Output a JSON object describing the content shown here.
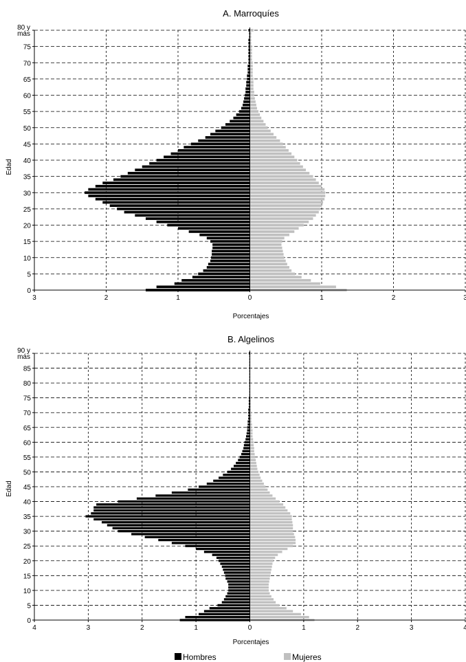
{
  "charts": [
    {
      "type": "bar",
      "title": "A. Marroquíes",
      "xlabel": "Porcentajes",
      "ylabel": "Edad",
      "x_ticks": [
        "3",
        "2",
        "1",
        "0",
        "1",
        "2",
        "3"
      ],
      "y_ticks": [
        "0",
        "5",
        "10",
        "15",
        "20",
        "25",
        "30",
        "35",
        "40",
        "45",
        "50",
        "55",
        "60",
        "65",
        "70",
        "75"
      ],
      "top_label": [
        "80 y",
        "más"
      ],
      "xlim": [
        -3,
        3
      ],
      "ages": [
        0,
        1,
        2,
        3,
        4,
        5,
        6,
        7,
        8,
        9,
        10,
        11,
        12,
        13,
        14,
        15,
        16,
        17,
        18,
        19,
        20,
        21,
        22,
        23,
        24,
        25,
        26,
        27,
        28,
        29,
        30,
        31,
        32,
        33,
        34,
        35,
        36,
        37,
        38,
        39,
        40,
        41,
        42,
        43,
        44,
        45,
        46,
        47,
        48,
        49,
        50,
        51,
        52,
        53,
        54,
        55,
        56,
        57,
        58,
        59,
        60,
        61,
        62,
        63,
        64,
        65,
        66,
        67,
        68,
        69,
        70,
        71,
        72,
        73,
        74,
        75,
        76,
        77,
        78,
        79,
        80
      ],
      "hombres": [
        1.45,
        1.3,
        1.05,
        0.95,
        0.8,
        0.72,
        0.65,
        0.6,
        0.58,
        0.55,
        0.54,
        0.53,
        0.53,
        0.52,
        0.52,
        0.55,
        0.6,
        0.7,
        0.85,
        1.0,
        1.15,
        1.3,
        1.45,
        1.6,
        1.75,
        1.85,
        1.95,
        2.05,
        2.15,
        2.25,
        2.3,
        2.25,
        2.15,
        2.05,
        1.9,
        1.8,
        1.7,
        1.6,
        1.5,
        1.4,
        1.3,
        1.2,
        1.1,
        1.0,
        0.92,
        0.82,
        0.72,
        0.62,
        0.55,
        0.48,
        0.4,
        0.34,
        0.28,
        0.23,
        0.19,
        0.15,
        0.12,
        0.1,
        0.09,
        0.08,
        0.07,
        0.06,
        0.06,
        0.05,
        0.05,
        0.04,
        0.04,
        0.03,
        0.03,
        0.03,
        0.02,
        0.02,
        0.02,
        0.02,
        0.02,
        0.02,
        0.02,
        0.02,
        0.01,
        0.01,
        0.02
      ],
      "mujeres": [
        1.35,
        1.2,
        0.98,
        0.85,
        0.72,
        0.63,
        0.58,
        0.55,
        0.52,
        0.5,
        0.48,
        0.47,
        0.46,
        0.45,
        0.44,
        0.45,
        0.48,
        0.55,
        0.62,
        0.68,
        0.75,
        0.82,
        0.88,
        0.92,
        0.96,
        0.98,
        1.0,
        1.02,
        1.04,
        1.05,
        1.05,
        1.04,
        1.0,
        0.96,
        0.92,
        0.88,
        0.83,
        0.78,
        0.74,
        0.7,
        0.66,
        0.62,
        0.58,
        0.54,
        0.5,
        0.46,
        0.42,
        0.37,
        0.33,
        0.29,
        0.25,
        0.22,
        0.19,
        0.16,
        0.14,
        0.12,
        0.1,
        0.09,
        0.08,
        0.07,
        0.06,
        0.06,
        0.05,
        0.05,
        0.05,
        0.05,
        0.04,
        0.04,
        0.04,
        0.04,
        0.04,
        0.03,
        0.03,
        0.03,
        0.03,
        0.03,
        0.02,
        0.02,
        0.02,
        0.02,
        0.05
      ]
    },
    {
      "type": "bar",
      "title": "B. Algelinos",
      "xlabel": "Porcentajes",
      "ylabel": "Edad",
      "x_ticks": [
        "4",
        "3",
        "2",
        "1",
        "0",
        "1",
        "2",
        "3",
        "4"
      ],
      "y_ticks": [
        "0",
        "5",
        "10",
        "15",
        "20",
        "25",
        "30",
        "35",
        "40",
        "45",
        "50",
        "55",
        "60",
        "65",
        "70",
        "75",
        "80",
        "85"
      ],
      "top_label": [
        "90 y",
        "más"
      ],
      "xlim": [
        -4,
        4
      ],
      "ages": [
        0,
        1,
        2,
        3,
        4,
        5,
        6,
        7,
        8,
        9,
        10,
        11,
        12,
        13,
        14,
        15,
        16,
        17,
        18,
        19,
        20,
        21,
        22,
        23,
        24,
        25,
        26,
        27,
        28,
        29,
        30,
        31,
        32,
        33,
        34,
        35,
        36,
        37,
        38,
        39,
        40,
        41,
        42,
        43,
        44,
        45,
        46,
        47,
        48,
        49,
        50,
        51,
        52,
        53,
        54,
        55,
        56,
        57,
        58,
        59,
        60,
        61,
        62,
        63,
        64,
        65,
        66,
        67,
        68,
        69,
        70,
        71,
        72,
        73,
        74,
        75,
        76,
        77,
        78,
        79,
        80,
        81,
        82,
        83,
        84,
        85,
        86,
        87,
        88,
        89,
        90
      ],
      "hombres": [
        1.3,
        1.2,
        0.95,
        0.85,
        0.75,
        0.6,
        0.52,
        0.48,
        0.45,
        0.42,
        0.4,
        0.4,
        0.4,
        0.42,
        0.45,
        0.46,
        0.48,
        0.5,
        0.52,
        0.55,
        0.58,
        0.62,
        0.7,
        0.85,
        1.0,
        1.2,
        1.45,
        1.7,
        1.95,
        2.2,
        2.45,
        2.55,
        2.65,
        2.75,
        2.9,
        3.05,
        2.95,
        2.9,
        2.9,
        2.85,
        2.45,
        2.1,
        1.75,
        1.45,
        1.15,
        0.95,
        0.8,
        0.68,
        0.58,
        0.5,
        0.42,
        0.35,
        0.3,
        0.26,
        0.22,
        0.19,
        0.16,
        0.14,
        0.12,
        0.11,
        0.1,
        0.08,
        0.07,
        0.06,
        0.05,
        0.05,
        0.04,
        0.04,
        0.03,
        0.03,
        0.03,
        0.03,
        0.02,
        0.02,
        0.02,
        0.02,
        0.01,
        0.01,
        0.01,
        0.01,
        0.01,
        0.01,
        0.01,
        0.01,
        0.01,
        0.01,
        0.01,
        0.01,
        0.01,
        0.01,
        0.02
      ],
      "mujeres": [
        1.2,
        1.1,
        0.95,
        0.8,
        0.68,
        0.55,
        0.48,
        0.44,
        0.4,
        0.37,
        0.35,
        0.35,
        0.35,
        0.36,
        0.37,
        0.38,
        0.39,
        0.4,
        0.41,
        0.42,
        0.44,
        0.47,
        0.52,
        0.6,
        0.7,
        0.8,
        0.85,
        0.85,
        0.84,
        0.82,
        0.8,
        0.8,
        0.8,
        0.79,
        0.78,
        0.78,
        0.75,
        0.7,
        0.66,
        0.62,
        0.55,
        0.48,
        0.42,
        0.37,
        0.33,
        0.29,
        0.26,
        0.23,
        0.2,
        0.18,
        0.16,
        0.14,
        0.13,
        0.12,
        0.11,
        0.1,
        0.09,
        0.08,
        0.08,
        0.07,
        0.07,
        0.06,
        0.05,
        0.05,
        0.05,
        0.04,
        0.04,
        0.03,
        0.03,
        0.03,
        0.03,
        0.02,
        0.02,
        0.02,
        0.02,
        0.02,
        0.01,
        0.01,
        0.01,
        0.01,
        0.01,
        0.01,
        0.01,
        0.01,
        0.01,
        0.01,
        0.01,
        0.01,
        0.01,
        0.01,
        0.02
      ]
    }
  ],
  "legend": [
    {
      "label": "Hombres",
      "color": "#000000"
    },
    {
      "label": "Mujeres",
      "color": "#c0c0c0"
    }
  ]
}
